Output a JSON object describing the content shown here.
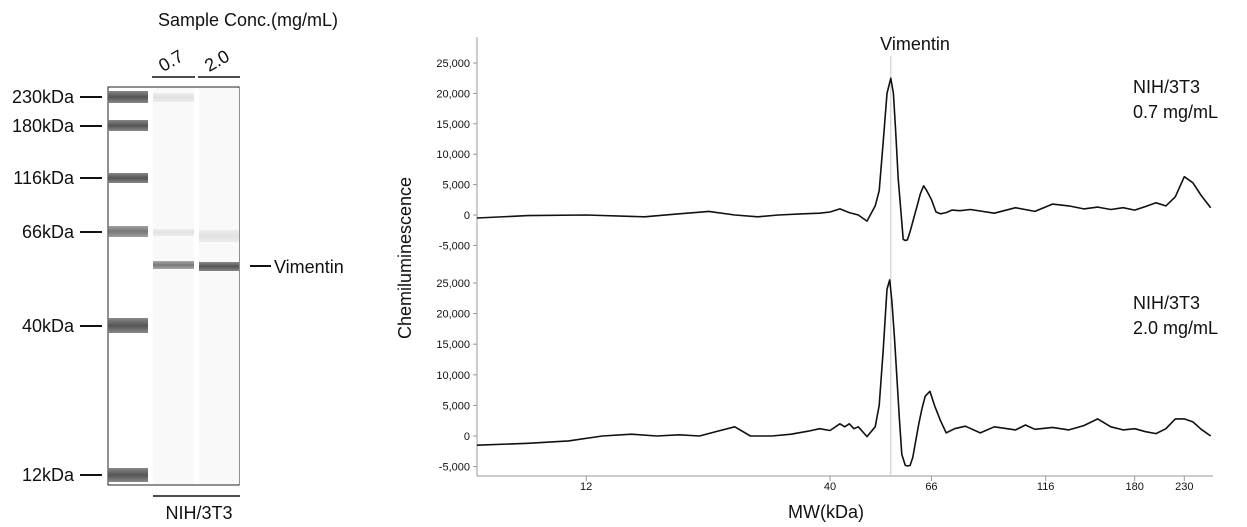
{
  "gel": {
    "header": "Sample Conc.(mg/mL)",
    "lane_labels": [
      "0.7",
      "2.0"
    ],
    "footer": "NIH/3T3",
    "ladder": [
      {
        "label": "230kDa",
        "kda": 230
      },
      {
        "label": "180kDa",
        "kda": 180
      },
      {
        "label": "116kDa",
        "kda": 116
      },
      {
        "label": "66kDa",
        "kda": 66
      },
      {
        "label": "40kDa",
        "kda": 40
      },
      {
        "label": "12kDa",
        "kda": 12
      }
    ],
    "band_label": "Vimentin",
    "band_kda": 54
  },
  "chart_data": {
    "type": "line",
    "title": "",
    "xlabel": "MW(kDa)",
    "ylabel": "Chemiluminescence",
    "x_scale": "log",
    "x_ticks": [
      12,
      40,
      66,
      116,
      180,
      230
    ],
    "xlim": [
      7,
      265
    ],
    "peak_label": "Vimentin",
    "peak_x": 54,
    "panels": [
      {
        "annotation": [
          "NIH/3T3",
          "0.7 mg/mL"
        ],
        "ylim": [
          -6000,
          27000
        ],
        "y_ticks": [
          25000,
          20000,
          15000,
          10000,
          5000,
          0,
          -5000
        ],
        "y_tick_labels": [
          "25,000",
          "20,000",
          "15,000",
          "10,000",
          "5,000",
          "0",
          "-5,000"
        ],
        "x": [
          7,
          9,
          12,
          16,
          19,
          22,
          25,
          28,
          31,
          35,
          38,
          40,
          42,
          44,
          46,
          48,
          50,
          51,
          52,
          53,
          54,
          54.7,
          55.3,
          56,
          56.7,
          57.4,
          58,
          58.6,
          59.5,
          60.5,
          61.5,
          62.5,
          63.5,
          64.5,
          66,
          67.5,
          69,
          71,
          73,
          76,
          80,
          90,
          100,
          110,
          120,
          130,
          140,
          150,
          160,
          170,
          180,
          190,
          200,
          210,
          220,
          230,
          240,
          250,
          262
        ],
        "y": [
          -500,
          -100,
          0,
          -300,
          200,
          600,
          0,
          -300,
          0,
          200,
          300,
          500,
          1000,
          400,
          0,
          -1000,
          1500,
          4000,
          12000,
          20000,
          22500,
          20000,
          14000,
          6000,
          1000,
          -4000,
          -4200,
          -4100,
          -2500,
          -500,
          1500,
          3500,
          4800,
          4000,
          2500,
          500,
          200,
          400,
          800,
          700,
          900,
          300,
          1200,
          600,
          1800,
          1500,
          1000,
          1300,
          900,
          1200,
          800,
          1400,
          2000,
          1500,
          3000,
          6300,
          5300,
          3200,
          1200
        ]
      },
      {
        "annotation": [
          "NIH/3T3",
          "2.0 mg/mL"
        ],
        "ylim": [
          -6000,
          27000
        ],
        "y_ticks": [
          25000,
          20000,
          15000,
          10000,
          5000,
          0,
          -5000
        ],
        "y_tick_labels": [
          "25,000",
          "20,000",
          "15,000",
          "10,000",
          "5,000",
          "0",
          "-5,000"
        ],
        "x": [
          7,
          9,
          11,
          13,
          15,
          17,
          19,
          21,
          23,
          25,
          27,
          30,
          33,
          36,
          38,
          40,
          42,
          43,
          44,
          45,
          46,
          48,
          50,
          51,
          52,
          53,
          53.7,
          54.3,
          55,
          55.7,
          56.3,
          57,
          58,
          58.7,
          59.4,
          60.2,
          61,
          62,
          63,
          64,
          65.5,
          67,
          69,
          71,
          74,
          78,
          84,
          90,
          100,
          105,
          110,
          120,
          130,
          140,
          150,
          160,
          170,
          180,
          190,
          200,
          210,
          220,
          230,
          240,
          250,
          262
        ],
        "y": [
          -1500,
          -1200,
          -800,
          0,
          300,
          0,
          200,
          0,
          800,
          1500,
          0,
          0,
          300,
          800,
          1200,
          900,
          2000,
          1500,
          2000,
          1200,
          1500,
          -100,
          1500,
          5000,
          14000,
          24000,
          25500,
          22000,
          16000,
          9000,
          3000,
          -3000,
          -4800,
          -4900,
          -4800,
          -3500,
          -1000,
          2000,
          4500,
          6500,
          7300,
          5000,
          2500,
          500,
          1200,
          1600,
          500,
          1500,
          1000,
          1800,
          1100,
          1400,
          1000,
          1700,
          2800,
          1500,
          1000,
          1200,
          700,
          400,
          1200,
          2800,
          2800,
          2300,
          1100,
          0
        ]
      }
    ]
  }
}
